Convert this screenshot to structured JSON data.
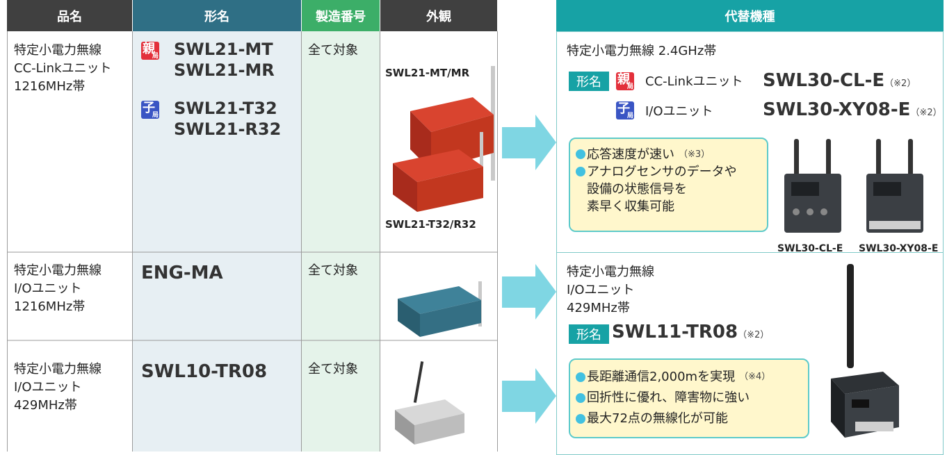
{
  "table": {
    "headers": [
      "品名",
      "形名",
      "製造番号",
      "外観"
    ],
    "rows": [
      {
        "name": [
          "特定小電力無線",
          "CC-Linkユニット",
          "1216MHz帯"
        ],
        "model_groups": [
          {
            "badge": {
              "main": "親",
              "sub": "局"
            },
            "models": [
              "SWL21-MT",
              "SWL21-MR"
            ]
          },
          {
            "badge": {
              "main": "子",
              "sub": "局"
            },
            "models": [
              "SWL21-T32",
              "SWL21-R32"
            ]
          }
        ],
        "serial": "全て対象",
        "appearance_labels": [
          "SWL21-MT/MR",
          "SWL21-T32/R32"
        ]
      },
      {
        "name": [
          "特定小電力無線",
          "I/Oユニット",
          "1216MHz帯"
        ],
        "model": "ENG-MA",
        "serial": "全て対象"
      },
      {
        "name": [
          "特定小電力無線",
          "I/Oユニット",
          "429MHz帯"
        ],
        "model": "SWL10-TR08",
        "serial": "全て対象"
      }
    ]
  },
  "replacement": {
    "header": "代替機種",
    "sections": [
      {
        "band": "特定小電力無線 2.4GHz帯",
        "model_label": "形名",
        "items": [
          {
            "badge": {
              "main": "親",
              "sub": "局"
            },
            "description": "CC-Linkユニット",
            "model": "SWL30-CL-E",
            "note": "（※2）"
          },
          {
            "badge": {
              "main": "子",
              "sub": "局"
            },
            "description": "I/Oユニット",
            "model": "SWL30-XY08-E",
            "note": "（※2）"
          }
        ],
        "features": [
          {
            "lines": [
              "応答速度が速い"
            ],
            "note": "（※3）"
          },
          {
            "lines": [
              "アナログセンサのデータや",
              "設備の状態信号を",
              "素早く収集可能"
            ]
          }
        ],
        "product_labels": [
          "SWL30-CL-E",
          "SWL30-XY08-E"
        ]
      },
      {
        "band_lines": [
          "特定小電力無線",
          "I/Oユニット",
          "429MHz帯"
        ],
        "model_label": "形名",
        "model": "SWL11-TR08",
        "note": "（※2）",
        "features": [
          {
            "lines": [
              "長距離通信2,000mを実現"
            ],
            "note": "（※4）"
          },
          {
            "lines": [
              "回折性に優れ、障害物に強い"
            ]
          },
          {
            "lines": [
              "最大72点の無線化が可能"
            ]
          }
        ]
      }
    ]
  }
}
